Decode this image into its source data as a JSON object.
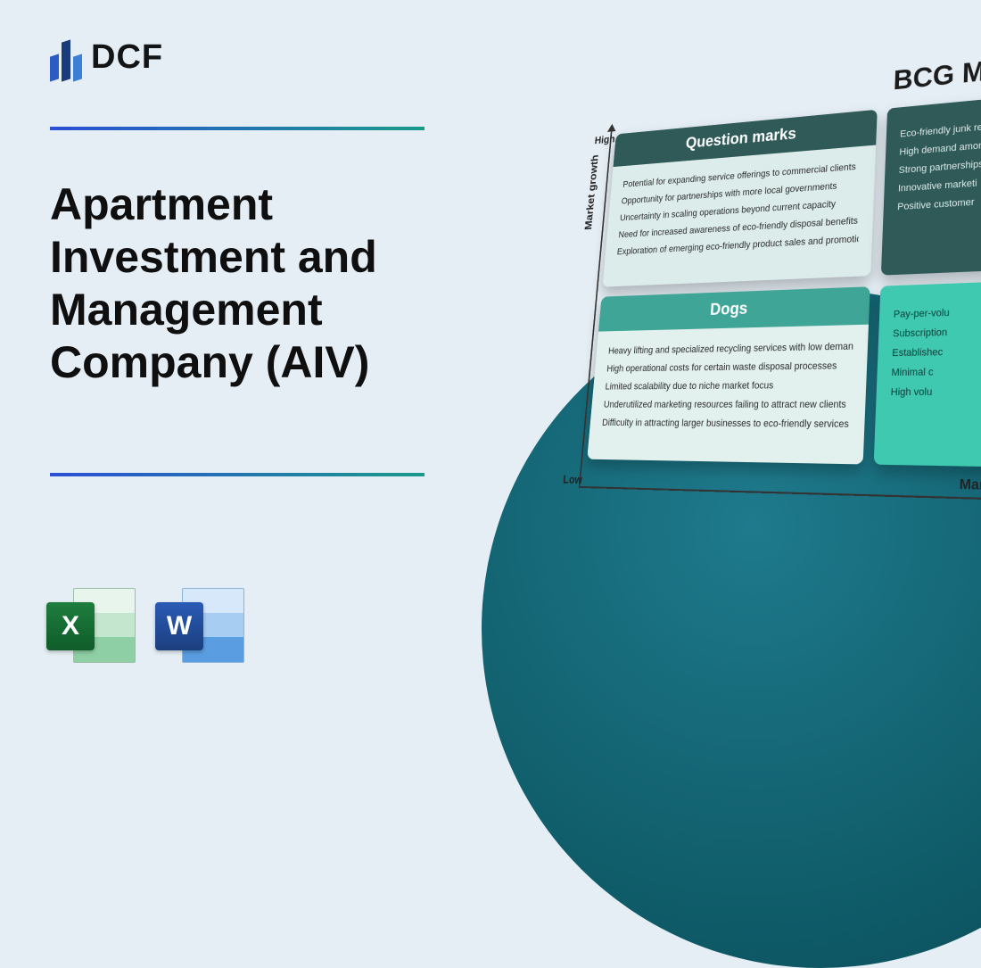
{
  "logo_text": "DCF",
  "title": "Apartment Investment and Management Company (AIV)",
  "apps": {
    "excel_letter": "X",
    "word_letter": "W"
  },
  "matrix": {
    "title": "BCG MATRIX",
    "y_axis_label": "Market growth",
    "x_axis_label": "Market share",
    "high_label": "High",
    "low_label": "Low",
    "colors": {
      "qm_header": "#2f5a57",
      "dogs_header": "#3fa596",
      "stars_bg": "#2f5a57",
      "cash_bg": "#3ec9b0"
    },
    "cells": {
      "question_marks": {
        "label": "Question marks",
        "items": [
          "Potential for expanding service offerings to commercial clients",
          "Opportunity for partnerships with more local governments",
          "Uncertainty in scaling operations beyond current capacity",
          "Need for increased awareness of eco-friendly disposal benefits",
          "Exploration of emerging eco-friendly product sales and promotions"
        ]
      },
      "stars": {
        "items": [
          "Eco-friendly junk remo",
          "High demand among",
          "Strong partnerships",
          "Innovative marketi",
          "Positive customer"
        ]
      },
      "dogs": {
        "label": "Dogs",
        "items": [
          "Heavy lifting and specialized recycling services with low demand",
          "High operational costs for certain waste disposal processes",
          "Limited scalability due to niche market focus",
          "Underutilized marketing resources failing to attract new clients",
          "Difficulty in attracting larger businesses to eco-friendly services"
        ]
      },
      "cash_cows": {
        "items": [
          "Pay-per-volu",
          "Subscription",
          "Establishec",
          "Minimal c",
          "High volu"
        ]
      }
    }
  }
}
